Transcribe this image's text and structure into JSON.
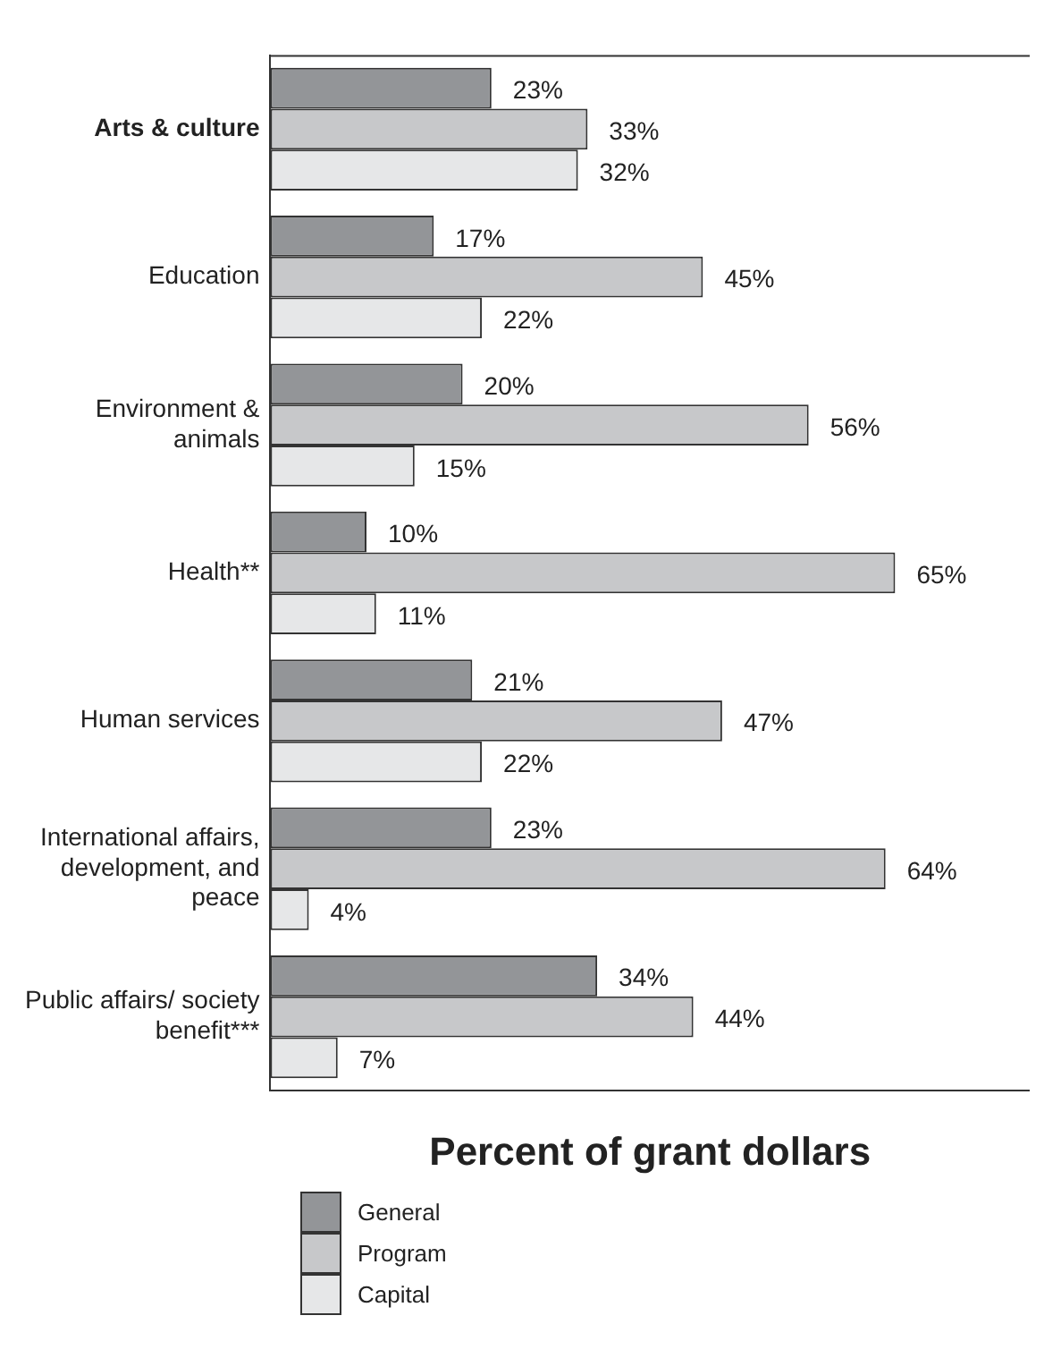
{
  "chart_data": {
    "type": "bar",
    "orientation": "horizontal",
    "xlabel": "Percent of grant dollars",
    "categories": [
      "Arts & culture",
      "Education",
      "Environment & animals",
      "Health**",
      "Human services",
      "International affairs, development, and peace",
      "Public affairs/ society benefit***"
    ],
    "series": [
      {
        "name": "General",
        "color": "#939598",
        "values": [
          23,
          17,
          20,
          10,
          21,
          23,
          34
        ],
        "value_labels": [
          "23%",
          "17%",
          "20%",
          "10%",
          "21%",
          "23%",
          "34%"
        ]
      },
      {
        "name": "Program",
        "color": "#c7c8ca",
        "values": [
          33,
          45,
          56,
          65,
          47,
          64,
          44
        ],
        "value_labels": [
          "33%",
          "45%",
          "56%",
          "65%",
          "47%",
          "64%",
          "44%"
        ]
      },
      {
        "name": "Capital",
        "color": "#e6e7e8",
        "values": [
          32,
          22,
          15,
          11,
          22,
          4,
          7
        ],
        "value_labels": [
          "32%",
          "22%",
          "15%",
          "11%",
          "22%",
          "4%",
          "7%"
        ]
      }
    ],
    "xlim": [
      0,
      79
    ],
    "tick_labels": "y",
    "grid": false,
    "legend": "bottom"
  }
}
